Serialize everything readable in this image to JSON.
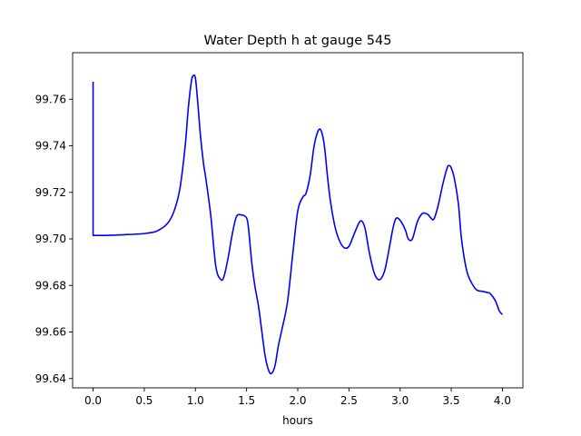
{
  "chart_data": {
    "type": "line",
    "title": "Water Depth h at gauge 545",
    "xlabel": "hours",
    "ylabel": "",
    "xlim": [
      -0.2,
      4.2
    ],
    "ylim": [
      99.636,
      99.78
    ],
    "xticks": [
      0.0,
      0.5,
      1.0,
      1.5,
      2.0,
      2.5,
      3.0,
      3.5,
      4.0
    ],
    "xtick_labels": [
      "0.0",
      "0.5",
      "1.0",
      "1.5",
      "2.0",
      "2.5",
      "3.0",
      "3.5",
      "4.0"
    ],
    "yticks": [
      99.64,
      99.66,
      99.68,
      99.7,
      99.72,
      99.74,
      99.76
    ],
    "ytick_labels": [
      "99.64",
      "99.66",
      "99.68",
      "99.70",
      "99.72",
      "99.74",
      "99.76"
    ],
    "grid": false,
    "legend": "none",
    "series": [
      {
        "color": "#0000ff",
        "x": [
          0.0,
          0.0,
          0.1,
          0.2,
          0.3,
          0.4,
          0.5,
          0.6,
          0.65,
          0.7,
          0.75,
          0.8,
          0.85,
          0.9,
          0.93,
          0.96,
          0.98,
          1.0,
          1.02,
          1.05,
          1.08,
          1.1,
          1.15,
          1.2,
          1.25,
          1.28,
          1.32,
          1.36,
          1.4,
          1.45,
          1.5,
          1.52,
          1.55,
          1.58,
          1.62,
          1.68,
          1.72,
          1.75,
          1.78,
          1.81,
          1.85,
          1.9,
          1.95,
          2.0,
          2.05,
          2.08,
          2.12,
          2.16,
          2.2,
          2.23,
          2.26,
          2.29,
          2.32,
          2.36,
          2.4,
          2.45,
          2.5,
          2.55,
          2.6,
          2.63,
          2.66,
          2.7,
          2.75,
          2.8,
          2.85,
          2.9,
          2.93,
          2.96,
          3.0,
          3.05,
          3.08,
          3.12,
          3.17,
          3.22,
          3.27,
          3.3,
          3.33,
          3.37,
          3.42,
          3.46,
          3.48,
          3.5,
          3.53,
          3.57,
          3.6,
          3.65,
          3.7,
          3.75,
          3.8,
          3.85,
          3.88,
          3.93,
          3.97,
          4.0
        ],
        "y": [
          99.7675,
          99.7015,
          99.7015,
          99.7016,
          99.7018,
          99.702,
          99.7023,
          99.703,
          99.704,
          99.7055,
          99.708,
          99.713,
          99.722,
          99.74,
          99.756,
          99.7675,
          99.7702,
          99.769,
          99.76,
          99.744,
          99.732,
          99.7265,
          99.71,
          99.688,
          99.6825,
          99.684,
          99.692,
          99.702,
          99.7095,
          99.7103,
          99.709,
          99.704,
          99.69,
          99.68,
          99.67,
          99.65,
          99.643,
          99.6425,
          99.646,
          99.654,
          99.662,
          99.673,
          99.693,
          99.712,
          99.718,
          99.7195,
          99.727,
          99.74,
          99.7465,
          99.7463,
          99.74,
          99.727,
          99.716,
          99.706,
          99.7,
          99.6963,
          99.6968,
          99.702,
          99.707,
          99.7075,
          99.704,
          99.694,
          99.685,
          99.6825,
          99.6865,
          99.6975,
          99.7045,
          99.7088,
          99.708,
          99.704,
          99.7,
          99.7,
          99.7075,
          99.711,
          99.7105,
          99.709,
          99.7085,
          99.714,
          99.724,
          99.7305,
          99.7315,
          99.7305,
          99.726,
          99.715,
          99.7,
          99.6865,
          99.681,
          99.678,
          99.6775,
          99.677,
          99.6765,
          99.6735,
          99.669,
          99.6675
        ]
      }
    ]
  }
}
